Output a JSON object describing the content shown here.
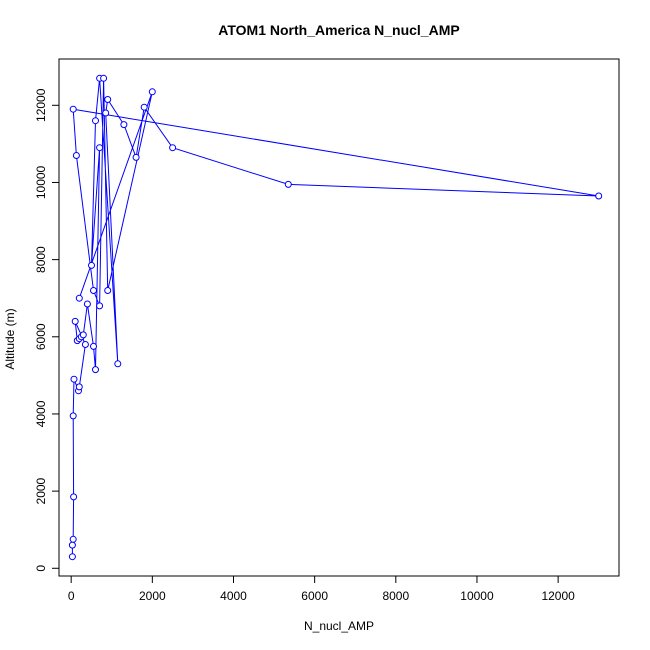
{
  "chart_data": {
    "type": "scatter",
    "title": "ATOM1 North_America N_nucl_AMP",
    "xlabel": "N_nucl_AMP",
    "ylabel": "Altitude (m)",
    "xlim": [
      -300,
      13500
    ],
    "ylim": [
      -200,
      13200
    ],
    "xticks": [
      0,
      2000,
      4000,
      6000,
      8000,
      10000,
      12000
    ],
    "yticks": [
      0,
      2000,
      4000,
      6000,
      8000,
      10000,
      12000
    ],
    "grid": false,
    "legend": "none",
    "color": "#0000ff",
    "series": [
      {
        "x": [
          30,
          30,
          50,
          60,
          50,
          70,
          180,
          200,
          350,
          100,
          150,
          200,
          250,
          300,
          400,
          550,
          600,
          700,
          500,
          600,
          700,
          1150,
          850,
          900,
          1300,
          1600,
          1800,
          2500,
          5350,
          13000,
          50,
          130,
          550,
          700,
          800,
          900,
          2000,
          200
        ],
        "y": [
          300,
          600,
          750,
          1850,
          3950,
          4900,
          4600,
          4700,
          5800,
          6400,
          5900,
          5950,
          6000,
          6050,
          6850,
          5750,
          5150,
          10900,
          7850,
          11600,
          12700,
          5300,
          11800,
          12150,
          11500,
          10650,
          11950,
          10900,
          9950,
          9650,
          11900,
          10700,
          7200,
          6800,
          12700,
          7200,
          12350,
          7000
        ]
      }
    ]
  }
}
